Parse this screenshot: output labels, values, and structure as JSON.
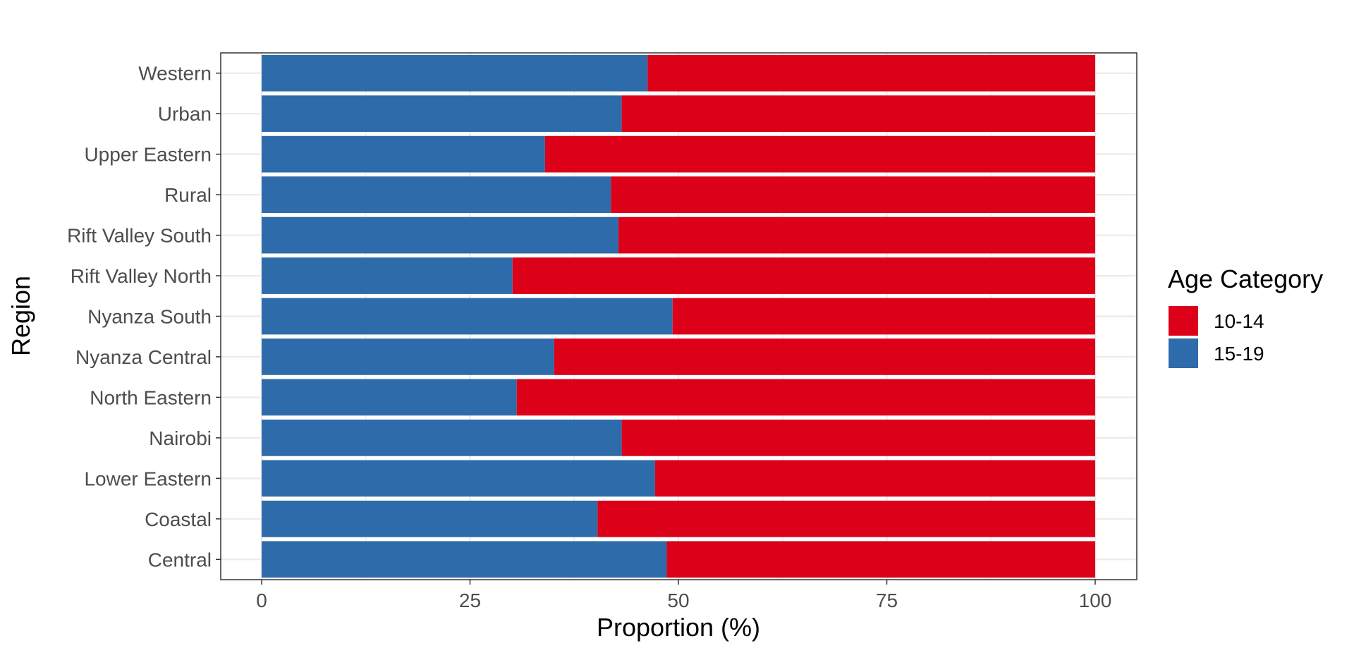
{
  "chart_data": {
    "type": "bar",
    "orientation": "horizontal",
    "stacked": true,
    "xlabel": "Proportion (%)",
    "ylabel": "Region",
    "xlim": [
      0,
      100
    ],
    "x_ticks": [
      0,
      25,
      50,
      75,
      100
    ],
    "x_tick_labels": [
      "0",
      "25",
      "50",
      "75",
      "100"
    ],
    "grid": true,
    "legend_position": "right",
    "legend": {
      "title": "Age Category",
      "entries": [
        {
          "label": "10-14",
          "color": "#DC0018"
        },
        {
          "label": "15-19",
          "color": "#2E6BAB"
        }
      ]
    },
    "categories": [
      "Central",
      "Coastal",
      "Lower Eastern",
      "Nairobi",
      "North Eastern",
      "Nyanza Central",
      "Nyanza South",
      "Rift Valley North",
      "Rift Valley South",
      "Rural",
      "Upper Eastern",
      "Urban",
      "Western"
    ],
    "series": [
      {
        "name": "15-19",
        "color": "#2E6BAB",
        "values": [
          48.6,
          40.3,
          47.2,
          43.2,
          30.6,
          35.1,
          49.3,
          30.1,
          42.8,
          41.9,
          34.0,
          43.2,
          46.3
        ]
      },
      {
        "name": "10-14",
        "color": "#DC0018",
        "values": [
          51.4,
          59.7,
          52.8,
          56.8,
          69.4,
          64.9,
          50.7,
          69.9,
          57.2,
          58.1,
          66.0,
          56.8,
          53.7
        ]
      }
    ]
  }
}
